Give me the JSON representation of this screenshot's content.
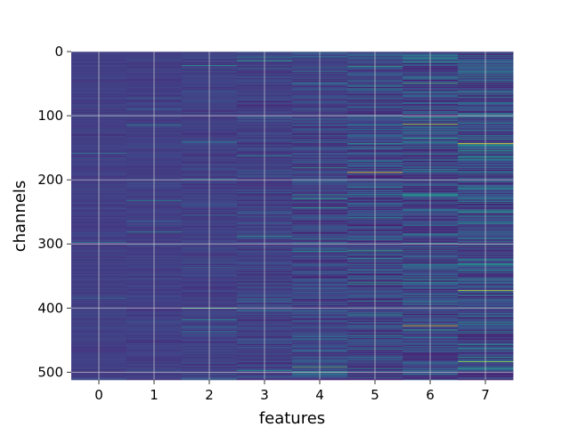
{
  "chart_data": {
    "type": "heatmap",
    "title": "",
    "xlabel": "features",
    "ylabel": "channels",
    "x_ticks": [
      "0",
      "1",
      "2",
      "3",
      "4",
      "5",
      "6",
      "7"
    ],
    "y_ticks": [
      "0",
      "100",
      "200",
      "300",
      "400",
      "500"
    ],
    "x_range": [
      -0.5,
      7.5
    ],
    "y_range": [
      0,
      512
    ],
    "y_inverted": true,
    "columns": 8,
    "rows": 512,
    "colormap": "viridis",
    "grid": true,
    "column_intensity": [
      0.08,
      0.1,
      0.15,
      0.22,
      0.3,
      0.36,
      0.4,
      0.44
    ],
    "notable_bright_rows": [
      {
        "feature": 5,
        "channel": 188,
        "value": 1.0
      },
      {
        "feature": 6,
        "channel": 113,
        "value": 0.9
      },
      {
        "feature": 6,
        "channel": 427,
        "value": 0.95
      },
      {
        "feature": 7,
        "channel": 143,
        "value": 1.0
      },
      {
        "feature": 7,
        "channel": 372,
        "value": 0.9
      },
      {
        "feature": 7,
        "channel": 483,
        "value": 0.85
      },
      {
        "feature": 4,
        "channel": 492,
        "value": 0.75
      },
      {
        "feature": 2,
        "channel": 400,
        "value": 0.7
      }
    ]
  },
  "colors": {
    "background": "#ffffff",
    "grid": "#d8d8d8",
    "text": "#000000"
  }
}
